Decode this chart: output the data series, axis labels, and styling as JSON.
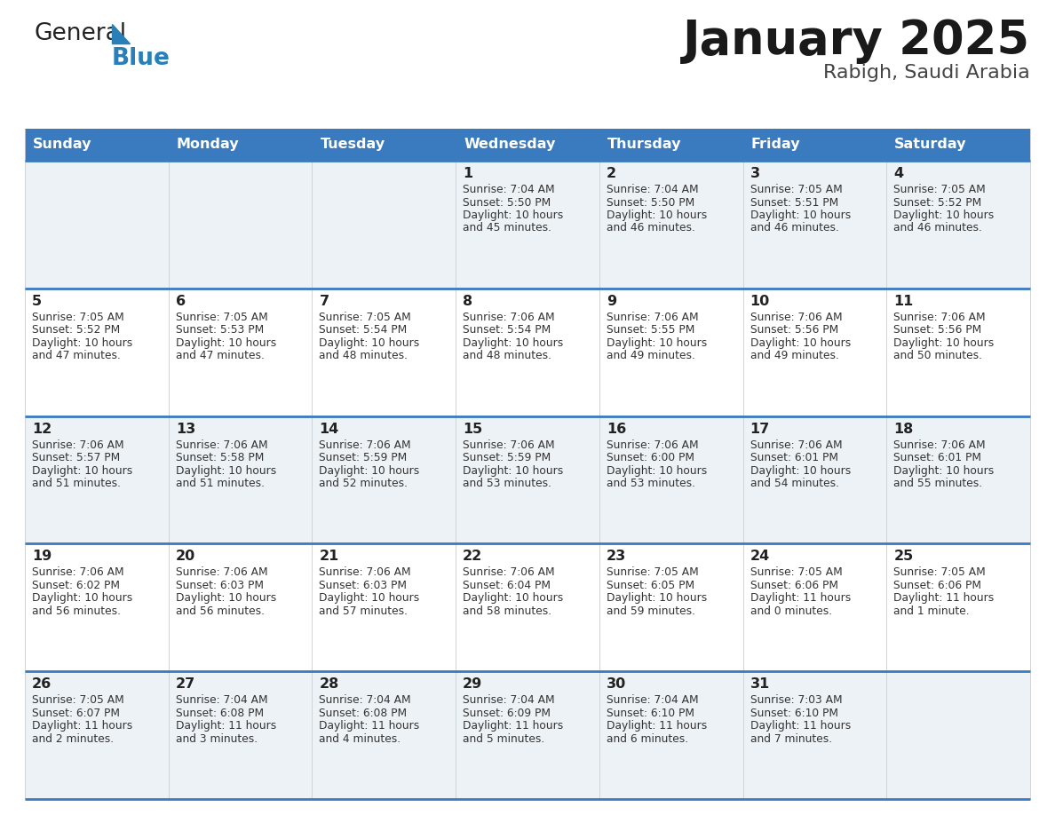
{
  "title": "January 2025",
  "subtitle": "Rabigh, Saudi Arabia",
  "header_bg": "#3a7abf",
  "header_text": "#ffffff",
  "row_bg_light": "#edf2f7",
  "row_bg_white": "#ffffff",
  "separator_color": "#3a7abf",
  "days_of_week": [
    "Sunday",
    "Monday",
    "Tuesday",
    "Wednesday",
    "Thursday",
    "Friday",
    "Saturday"
  ],
  "calendar": [
    [
      null,
      null,
      null,
      {
        "day": 1,
        "sunrise": "7:04 AM",
        "sunset": "5:50 PM",
        "daylight": "10 hours and 45 minutes."
      },
      {
        "day": 2,
        "sunrise": "7:04 AM",
        "sunset": "5:50 PM",
        "daylight": "10 hours and 46 minutes."
      },
      {
        "day": 3,
        "sunrise": "7:05 AM",
        "sunset": "5:51 PM",
        "daylight": "10 hours and 46 minutes."
      },
      {
        "day": 4,
        "sunrise": "7:05 AM",
        "sunset": "5:52 PM",
        "daylight": "10 hours and 46 minutes."
      }
    ],
    [
      {
        "day": 5,
        "sunrise": "7:05 AM",
        "sunset": "5:52 PM",
        "daylight": "10 hours and 47 minutes."
      },
      {
        "day": 6,
        "sunrise": "7:05 AM",
        "sunset": "5:53 PM",
        "daylight": "10 hours and 47 minutes."
      },
      {
        "day": 7,
        "sunrise": "7:05 AM",
        "sunset": "5:54 PM",
        "daylight": "10 hours and 48 minutes."
      },
      {
        "day": 8,
        "sunrise": "7:06 AM",
        "sunset": "5:54 PM",
        "daylight": "10 hours and 48 minutes."
      },
      {
        "day": 9,
        "sunrise": "7:06 AM",
        "sunset": "5:55 PM",
        "daylight": "10 hours and 49 minutes."
      },
      {
        "day": 10,
        "sunrise": "7:06 AM",
        "sunset": "5:56 PM",
        "daylight": "10 hours and 49 minutes."
      },
      {
        "day": 11,
        "sunrise": "7:06 AM",
        "sunset": "5:56 PM",
        "daylight": "10 hours and 50 minutes."
      }
    ],
    [
      {
        "day": 12,
        "sunrise": "7:06 AM",
        "sunset": "5:57 PM",
        "daylight": "10 hours and 51 minutes."
      },
      {
        "day": 13,
        "sunrise": "7:06 AM",
        "sunset": "5:58 PM",
        "daylight": "10 hours and 51 minutes."
      },
      {
        "day": 14,
        "sunrise": "7:06 AM",
        "sunset": "5:59 PM",
        "daylight": "10 hours and 52 minutes."
      },
      {
        "day": 15,
        "sunrise": "7:06 AM",
        "sunset": "5:59 PM",
        "daylight": "10 hours and 53 minutes."
      },
      {
        "day": 16,
        "sunrise": "7:06 AM",
        "sunset": "6:00 PM",
        "daylight": "10 hours and 53 minutes."
      },
      {
        "day": 17,
        "sunrise": "7:06 AM",
        "sunset": "6:01 PM",
        "daylight": "10 hours and 54 minutes."
      },
      {
        "day": 18,
        "sunrise": "7:06 AM",
        "sunset": "6:01 PM",
        "daylight": "10 hours and 55 minutes."
      }
    ],
    [
      {
        "day": 19,
        "sunrise": "7:06 AM",
        "sunset": "6:02 PM",
        "daylight": "10 hours and 56 minutes."
      },
      {
        "day": 20,
        "sunrise": "7:06 AM",
        "sunset": "6:03 PM",
        "daylight": "10 hours and 56 minutes."
      },
      {
        "day": 21,
        "sunrise": "7:06 AM",
        "sunset": "6:03 PM",
        "daylight": "10 hours and 57 minutes."
      },
      {
        "day": 22,
        "sunrise": "7:06 AM",
        "sunset": "6:04 PM",
        "daylight": "10 hours and 58 minutes."
      },
      {
        "day": 23,
        "sunrise": "7:05 AM",
        "sunset": "6:05 PM",
        "daylight": "10 hours and 59 minutes."
      },
      {
        "day": 24,
        "sunrise": "7:05 AM",
        "sunset": "6:06 PM",
        "daylight": "11 hours and 0 minutes."
      },
      {
        "day": 25,
        "sunrise": "7:05 AM",
        "sunset": "6:06 PM",
        "daylight": "11 hours and 1 minute."
      }
    ],
    [
      {
        "day": 26,
        "sunrise": "7:05 AM",
        "sunset": "6:07 PM",
        "daylight": "11 hours and 2 minutes."
      },
      {
        "day": 27,
        "sunrise": "7:04 AM",
        "sunset": "6:08 PM",
        "daylight": "11 hours and 3 minutes."
      },
      {
        "day": 28,
        "sunrise": "7:04 AM",
        "sunset": "6:08 PM",
        "daylight": "11 hours and 4 minutes."
      },
      {
        "day": 29,
        "sunrise": "7:04 AM",
        "sunset": "6:09 PM",
        "daylight": "11 hours and 5 minutes."
      },
      {
        "day": 30,
        "sunrise": "7:04 AM",
        "sunset": "6:10 PM",
        "daylight": "11 hours and 6 minutes."
      },
      {
        "day": 31,
        "sunrise": "7:03 AM",
        "sunset": "6:10 PM",
        "daylight": "11 hours and 7 minutes."
      },
      null
    ]
  ],
  "logo_general_color": "#222222",
  "logo_blue_color": "#2980b9",
  "logo_triangle_color": "#2980b9",
  "fig_width": 11.88,
  "fig_height": 9.18,
  "dpi": 100
}
